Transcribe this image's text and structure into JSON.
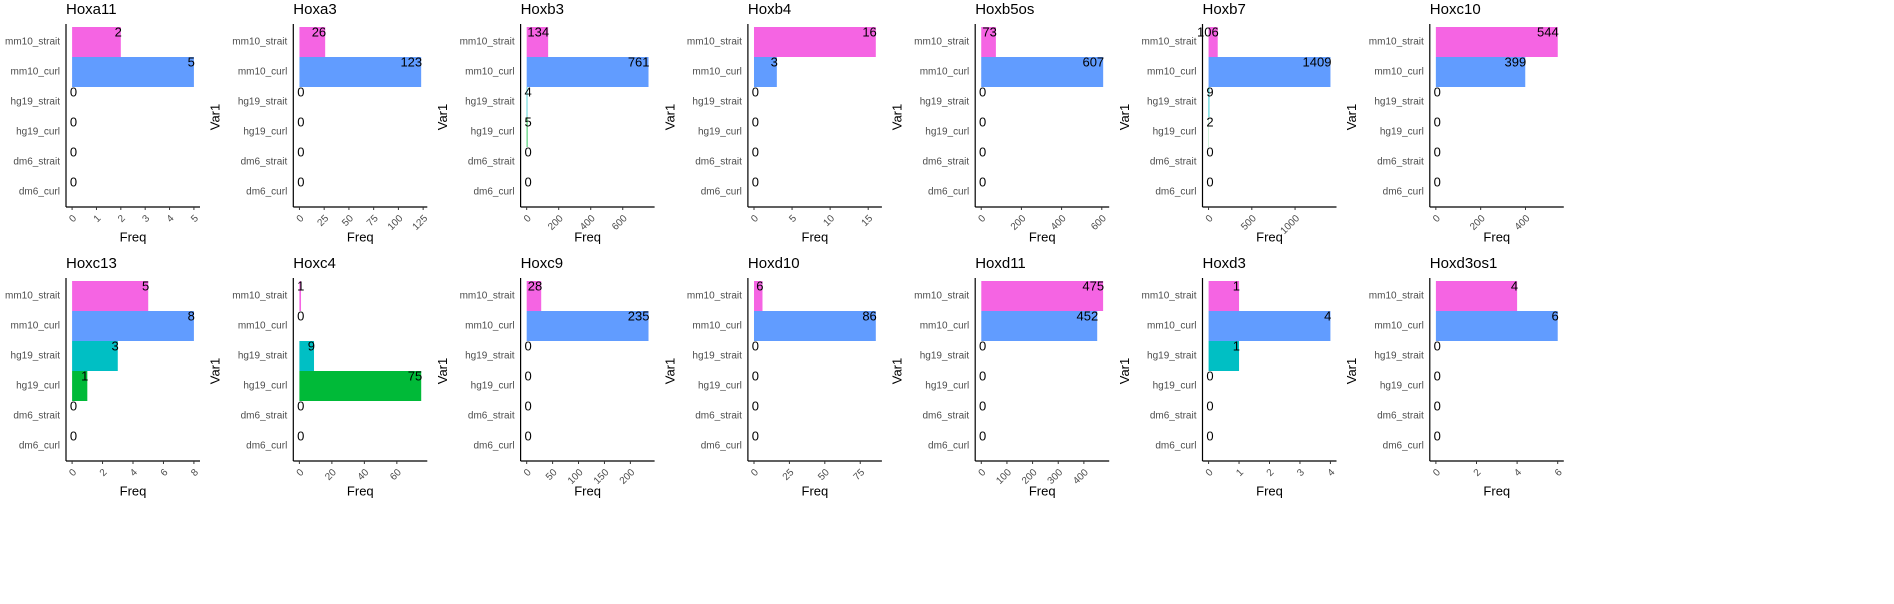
{
  "chart_data": [
    {
      "type": "bar",
      "title": "Hoxa11",
      "categories": [
        "mm10_strait",
        "mm10_curl",
        "hg19_strait",
        "hg19_curl",
        "dm6_strait",
        "dm6_curl"
      ],
      "values": [
        2,
        5,
        0,
        0,
        0,
        0
      ],
      "colors": [
        "#F564E3",
        "#619CFF",
        "#00BFC4",
        "#00BA38",
        "#B79F00",
        "#F8766D"
      ],
      "xlim": [
        -0.25,
        5.25
      ],
      "xticks": [
        0,
        1,
        2,
        3,
        4,
        5
      ],
      "xlabel": "Freq"
    },
    {
      "type": "bar",
      "title": "Hoxa3",
      "categories": [
        "mm10_strait",
        "mm10_curl",
        "hg19_strait",
        "hg19_curl",
        "dm6_strait",
        "dm6_curl"
      ],
      "values": [
        26,
        123,
        0,
        0,
        0,
        0
      ],
      "colors": [
        "#F564E3",
        "#619CFF",
        "#00BFC4",
        "#00BA38",
        "#B79F00",
        "#F8766D"
      ],
      "xlim": [
        -6.2,
        129.2
      ],
      "xticks": [
        0,
        25,
        50,
        75,
        100,
        125
      ],
      "xlabel": "Freq",
      "ylabel": "Var1"
    },
    {
      "type": "bar",
      "title": "Hoxb3",
      "categories": [
        "mm10_strait",
        "mm10_curl",
        "hg19_strait",
        "hg19_curl",
        "dm6_strait",
        "dm6_curl"
      ],
      "values": [
        134,
        761,
        4,
        5,
        0,
        0
      ],
      "colors": [
        "#F564E3",
        "#619CFF",
        "#00BFC4",
        "#00BA38",
        "#B79F00",
        "#F8766D"
      ],
      "xlim": [
        -38,
        799
      ],
      "xticks": [
        0,
        200,
        400,
        600
      ],
      "xlabel": "Freq",
      "ylabel": "Var1"
    },
    {
      "type": "bar",
      "title": "Hoxb4",
      "categories": [
        "mm10_strait",
        "mm10_curl",
        "hg19_strait",
        "hg19_curl",
        "dm6_strait",
        "dm6_curl"
      ],
      "values": [
        16,
        3,
        0,
        0,
        0,
        0
      ],
      "colors": [
        "#F564E3",
        "#619CFF",
        "#00BFC4",
        "#00BA38",
        "#B79F00",
        "#F8766D"
      ],
      "xlim": [
        -0.8,
        16.8
      ],
      "xticks": [
        0,
        5,
        10,
        15
      ],
      "xlabel": "Freq",
      "ylabel": "Var1"
    },
    {
      "type": "bar",
      "title": "Hoxb5os",
      "categories": [
        "mm10_strait",
        "mm10_curl",
        "hg19_strait",
        "hg19_curl",
        "dm6_strait",
        "dm6_curl"
      ],
      "values": [
        73,
        607,
        0,
        0,
        0,
        0
      ],
      "colors": [
        "#F564E3",
        "#619CFF",
        "#00BFC4",
        "#00BA38",
        "#B79F00",
        "#F8766D"
      ],
      "xlim": [
        -30,
        637
      ],
      "xticks": [
        0,
        200,
        400,
        600
      ],
      "xlabel": "Freq",
      "ylabel": "Var1"
    },
    {
      "type": "bar",
      "title": "Hoxb7",
      "categories": [
        "mm10_strait",
        "mm10_curl",
        "hg19_strait",
        "hg19_curl",
        "dm6_strait",
        "dm6_curl"
      ],
      "values": [
        106,
        1409,
        9,
        2,
        0,
        0
      ],
      "colors": [
        "#F564E3",
        "#619CFF",
        "#00BFC4",
        "#00BA38",
        "#B79F00",
        "#F8766D"
      ],
      "xlim": [
        -70,
        1479
      ],
      "xticks": [
        0,
        500,
        1000
      ],
      "xlabel": "Freq",
      "ylabel": "Var1"
    },
    {
      "type": "bar",
      "title": "Hoxc10",
      "categories": [
        "mm10_strait",
        "mm10_curl",
        "hg19_strait",
        "hg19_curl",
        "dm6_strait",
        "dm6_curl"
      ],
      "values": [
        544,
        399,
        0,
        0,
        0,
        0
      ],
      "colors": [
        "#F564E3",
        "#619CFF",
        "#00BFC4",
        "#00BA38",
        "#B79F00",
        "#F8766D"
      ],
      "xlim": [
        -27,
        571
      ],
      "xticks": [
        0,
        200,
        400
      ],
      "xlabel": "Freq",
      "ylabel": "Var1"
    },
    {
      "type": "bar",
      "title": "Hoxc13",
      "categories": [
        "mm10_strait",
        "mm10_curl",
        "hg19_strait",
        "hg19_curl",
        "dm6_strait",
        "dm6_curl"
      ],
      "values": [
        5,
        8,
        3,
        1,
        0,
        0
      ],
      "colors": [
        "#F564E3",
        "#619CFF",
        "#00BFC4",
        "#00BA38",
        "#B79F00",
        "#F8766D"
      ],
      "xlim": [
        -0.4,
        8.4
      ],
      "xticks": [
        0,
        2,
        4,
        6,
        8
      ],
      "xlabel": "Freq"
    },
    {
      "type": "bar",
      "title": "Hoxc4",
      "categories": [
        "mm10_strait",
        "mm10_curl",
        "hg19_strait",
        "hg19_curl",
        "dm6_strait",
        "dm6_curl"
      ],
      "values": [
        1,
        0,
        9,
        75,
        0,
        0
      ],
      "colors": [
        "#F564E3",
        "#619CFF",
        "#00BFC4",
        "#00BA38",
        "#B79F00",
        "#F8766D"
      ],
      "xlim": [
        -3.75,
        78.75
      ],
      "xticks": [
        0,
        20,
        40,
        60
      ],
      "xlabel": "Freq",
      "ylabel": "Var1"
    },
    {
      "type": "bar",
      "title": "Hoxc9",
      "categories": [
        "mm10_strait",
        "mm10_curl",
        "hg19_strait",
        "hg19_curl",
        "dm6_strait",
        "dm6_curl"
      ],
      "values": [
        28,
        235,
        0,
        0,
        0,
        0
      ],
      "colors": [
        "#F564E3",
        "#619CFF",
        "#00BFC4",
        "#00BA38",
        "#B79F00",
        "#F8766D"
      ],
      "xlim": [
        -11.75,
        246.75
      ],
      "xticks": [
        0,
        50,
        100,
        150,
        200
      ],
      "xlabel": "Freq",
      "ylabel": "Var1"
    },
    {
      "type": "bar",
      "title": "Hoxd10",
      "categories": [
        "mm10_strait",
        "mm10_curl",
        "hg19_strait",
        "hg19_curl",
        "dm6_strait",
        "dm6_curl"
      ],
      "values": [
        6,
        86,
        0,
        0,
        0,
        0
      ],
      "colors": [
        "#F564E3",
        "#619CFF",
        "#00BFC4",
        "#00BA38",
        "#B79F00",
        "#F8766D"
      ],
      "xlim": [
        -4.3,
        90.3
      ],
      "xticks": [
        0,
        25,
        50,
        75
      ],
      "xlabel": "Freq",
      "ylabel": "Var1"
    },
    {
      "type": "bar",
      "title": "Hoxd11",
      "categories": [
        "mm10_strait",
        "mm10_curl",
        "hg19_strait",
        "hg19_curl",
        "dm6_strait",
        "dm6_curl"
      ],
      "values": [
        475,
        452,
        0,
        0,
        0,
        0
      ],
      "colors": [
        "#F564E3",
        "#619CFF",
        "#00BFC4",
        "#00BA38",
        "#B79F00",
        "#F8766D"
      ],
      "xlim": [
        -23.75,
        498.75
      ],
      "xticks": [
        0,
        100,
        200,
        300,
        400
      ],
      "xlabel": "Freq",
      "ylabel": "Var1"
    },
    {
      "type": "bar",
      "title": "Hoxd3",
      "categories": [
        "mm10_strait",
        "mm10_curl",
        "hg19_strait",
        "hg19_curl",
        "dm6_strait",
        "dm6_curl"
      ],
      "values": [
        1,
        4,
        1,
        0,
        0,
        0
      ],
      "colors": [
        "#F564E3",
        "#619CFF",
        "#00BFC4",
        "#00BA38",
        "#B79F00",
        "#F8766D"
      ],
      "xlim": [
        -0.2,
        4.2
      ],
      "xticks": [
        0,
        1,
        2,
        3,
        4
      ],
      "xlabel": "Freq",
      "ylabel": "Var1"
    },
    {
      "type": "bar",
      "title": "Hoxd3os1",
      "categories": [
        "mm10_strait",
        "mm10_curl",
        "hg19_strait",
        "hg19_curl",
        "dm6_strait",
        "dm6_curl"
      ],
      "values": [
        4,
        6,
        0,
        0,
        0,
        0
      ],
      "colors": [
        "#F564E3",
        "#619CFF",
        "#00BFC4",
        "#00BA38",
        "#B79F00",
        "#F8766D"
      ],
      "xlim": [
        -0.3,
        6.3
      ],
      "xticks": [
        0,
        2,
        4,
        6
      ],
      "xlabel": "Freq",
      "ylabel": "Var1"
    }
  ]
}
